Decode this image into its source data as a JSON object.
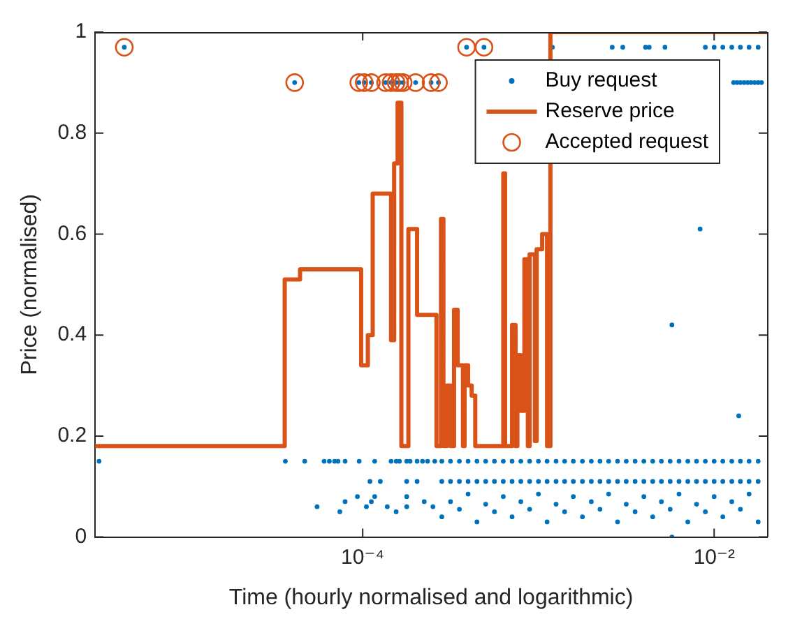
{
  "chart_data": {
    "type": "scatter",
    "xlabel": "Time (hourly normalised and logarithmic)",
    "ylabel": "Price (normalised)",
    "log": "x",
    "legend": "top right",
    "xlim": [
      3e-06,
      0.02
    ],
    "xticks": [
      {
        "value": 0.0001,
        "label": "10⁻⁴"
      },
      {
        "value": 0.01,
        "label": "10⁻²"
      }
    ],
    "ylim": [
      0,
      1
    ],
    "yticks": [
      0,
      0.2,
      0.4,
      0.6,
      0.8,
      1
    ],
    "series": [
      {
        "name": "Buy request",
        "marker": "circle",
        "color": "#0072bd",
        "x": [
          3.16e-06,
          3.63e-05,
          4.68e-05,
          6.03e-05,
          6.46e-05,
          6.92e-05,
          7.24e-05,
          7.94e-05,
          9.55e-05,
          0.000117,
          0.000145,
          0.000155,
          0.000162,
          0.000178,
          0.000186,
          0.000204,
          0.000219,
          0.000234,
          0.000257,
          0.000282,
          0.000316,
          0.000355,
          0.000398,
          0.000447,
          0.000501,
          0.000562,
          0.000631,
          0.000708,
          0.000794,
          0.000891,
          0.001,
          0.00112,
          0.00126,
          0.00141,
          0.00158,
          0.00178,
          0.002,
          0.00224,
          0.00251,
          0.00282,
          0.00316,
          0.00355,
          0.00398,
          0.00447,
          0.00501,
          0.00562,
          0.00631,
          0.00708,
          0.00794,
          0.00891,
          0.01,
          0.0112,
          0.0126,
          0.0141,
          0.0158,
          0.0178,
          0.00011,
          0.000126,
          0.000178,
          0.000204,
          0.000282,
          0.000316,
          0.000355,
          0.000398,
          0.000447,
          0.000501,
          0.000562,
          0.000631,
          0.000708,
          0.000794,
          0.000891,
          0.001,
          0.00112,
          0.00126,
          0.00141,
          0.00158,
          0.00178,
          0.002,
          0.00224,
          0.00251,
          0.00282,
          0.00316,
          0.00355,
          0.00398,
          0.00447,
          0.00501,
          0.00562,
          0.00631,
          0.00708,
          0.00794,
          0.00891,
          0.01,
          0.0112,
          0.0126,
          0.0141,
          0.0158,
          0.0178,
          5.5e-05,
          7.41e-05,
          7.94e-05,
          9.33e-05,
          0.000105,
          0.000112,
          0.000117,
          0.000138,
          0.000155,
          0.000178,
          0.000178,
          0.000224,
          0.000251,
          0.000282,
          0.000316,
          0.000355,
          0.000398,
          0.000447,
          0.000501,
          0.000562,
          0.000631,
          0.000708,
          0.000794,
          0.000891,
          0.001,
          0.00112,
          0.00126,
          0.00141,
          0.00158,
          0.00178,
          0.002,
          0.00224,
          0.00251,
          0.00282,
          0.00316,
          0.00355,
          0.00398,
          0.00447,
          0.00501,
          0.00562,
          0.00631,
          0.00708,
          0.00794,
          0.00891,
          0.01,
          0.0112,
          0.0126,
          0.0141,
          0.0158,
          0.0178,
          4.4e-06,
          4.1e-05,
          9.5e-05,
          0.000102,
          0.000112,
          0.000135,
          0.000145,
          0.000155,
          0.000162,
          0.00017,
          0.0002,
          0.000245,
          0.00027,
          0.00039,
          0.00049,
          0.0012,
          0.00263,
          0.00302,
          0.00407,
          0.00427,
          0.00525,
          0.00891,
          0.01,
          0.0112,
          0.0126,
          0.0141,
          0.0158,
          0.0178,
          0.0129,
          0.0135,
          0.0141,
          0.0148,
          0.0155,
          0.0162,
          0.017,
          0.0178,
          0.0186,
          0.00832,
          0.00575,
          0.0138,
          0.00575
        ],
        "values": [
          0.15,
          0.15,
          0.15,
          0.15,
          0.15,
          0.15,
          0.15,
          0.15,
          0.15,
          0.15,
          0.15,
          0.15,
          0.15,
          0.15,
          0.15,
          0.15,
          0.15,
          0.15,
          0.15,
          0.15,
          0.15,
          0.15,
          0.15,
          0.15,
          0.15,
          0.15,
          0.15,
          0.15,
          0.15,
          0.15,
          0.15,
          0.15,
          0.15,
          0.15,
          0.15,
          0.15,
          0.15,
          0.15,
          0.15,
          0.15,
          0.15,
          0.15,
          0.15,
          0.15,
          0.15,
          0.15,
          0.15,
          0.15,
          0.15,
          0.15,
          0.15,
          0.15,
          0.15,
          0.15,
          0.15,
          0.15,
          0.11,
          0.11,
          0.11,
          0.11,
          0.11,
          0.11,
          0.11,
          0.11,
          0.11,
          0.11,
          0.11,
          0.11,
          0.11,
          0.11,
          0.11,
          0.11,
          0.11,
          0.11,
          0.11,
          0.11,
          0.11,
          0.11,
          0.11,
          0.11,
          0.11,
          0.11,
          0.11,
          0.11,
          0.11,
          0.11,
          0.11,
          0.11,
          0.11,
          0.11,
          0.11,
          0.11,
          0.11,
          0.11,
          0.11,
          0.11,
          0.11,
          0.06,
          0.05,
          0.07,
          0.08,
          0.06,
          0.07,
          0.08,
          0.06,
          0.05,
          0.06,
          0.08,
          0.07,
          0.06,
          0.04,
          0.07,
          0.055,
          0.085,
          0.03,
          0.065,
          0.05,
          0.08,
          0.04,
          0.07,
          0.055,
          0.085,
          0.03,
          0.065,
          0.05,
          0.08,
          0.04,
          0.07,
          0.055,
          0.085,
          0.03,
          0.065,
          0.05,
          0.08,
          0.04,
          0.07,
          0.055,
          0.085,
          0.03,
          0.065,
          0.05,
          0.08,
          0.04,
          0.07,
          0.055,
          0.085,
          0.03,
          0.97,
          0.9,
          0.9,
          0.9,
          0.9,
          0.9,
          0.9,
          0.9,
          0.9,
          0.9,
          0.9,
          0.9,
          0.9,
          0.97,
          0.97,
          0.97,
          0.97,
          0.97,
          0.97,
          0.97,
          0.97,
          0.97,
          0.97,
          0.97,
          0.97,
          0.97,
          0.97,
          0.97,
          0.9,
          0.9,
          0.9,
          0.9,
          0.9,
          0.9,
          0.9,
          0.9,
          0.9,
          0.61,
          0.42,
          0.24,
          0
        ]
      },
      {
        "name": "Reserve price",
        "type": "step",
        "marker": "none",
        "color": "#d95319",
        "x": [
          3e-06,
          3.6e-05,
          4.4e-05,
          9.8e-05,
          0.000107,
          0.000114,
          0.000145,
          0.000151,
          0.000158,
          0.000166,
          0.000182,
          0.000204,
          0.000263,
          0.000279,
          0.000288,
          0.000302,
          0.000316,
          0.000331,
          0.000347,
          0.000372,
          0.00038,
          0.000398,
          0.000417,
          0.000437,
          0.000631,
          0.000646,
          0.000708,
          0.000741,
          0.000759,
          0.000794,
          0.000832,
          0.000871,
          0.000891,
          0.000955,
          0.000977,
          0.00105,
          0.00112,
          0.00117,
          0.02
        ],
        "values": [
          0.18,
          0.51,
          0.53,
          0.34,
          0.4,
          0.68,
          0.39,
          0.74,
          0.86,
          0.18,
          0.61,
          0.44,
          0.18,
          0.63,
          0.18,
          0.3,
          0.18,
          0.45,
          0.34,
          0.18,
          0.34,
          0.3,
          0.28,
          0.18,
          0.72,
          0.18,
          0.42,
          0.18,
          0.36,
          0.25,
          0.55,
          0.18,
          0.56,
          0.19,
          0.57,
          0.6,
          0.18,
          1,
          1
        ]
      },
      {
        "name": "Accepted request",
        "marker": "circle",
        "color": "#d95319",
        "x": [
          4.4e-06,
          4.1e-05,
          9.5e-05,
          0.000102,
          0.000112,
          0.000135,
          0.000145,
          0.000155,
          0.000162,
          0.00017,
          0.0002,
          0.000245,
          0.00027,
          0.00039,
          0.00049
        ],
        "values": [
          0.97,
          0.9,
          0.9,
          0.9,
          0.9,
          0.9,
          0.9,
          0.9,
          0.9,
          0.9,
          0.9,
          0.9,
          0.9,
          0.97,
          0.97
        ]
      }
    ]
  }
}
